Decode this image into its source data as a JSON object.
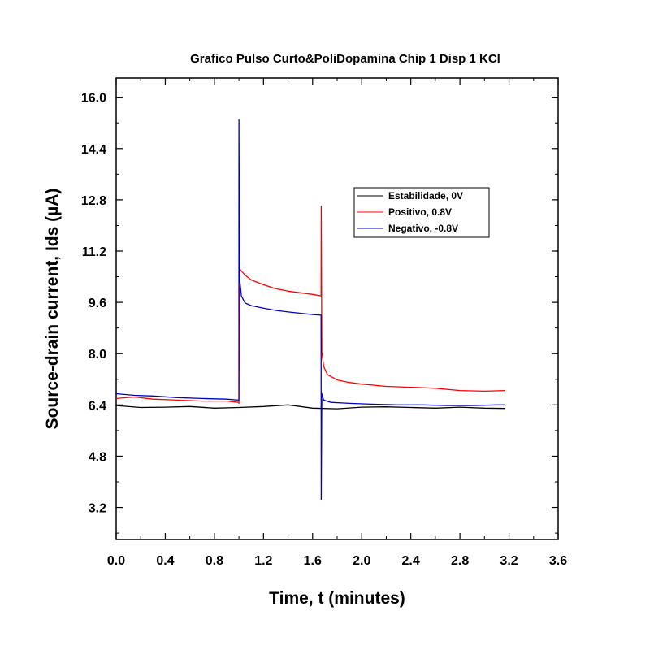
{
  "chart_data": {
    "type": "line",
    "title": "Grafico Pulso Curto&PoliDopamina Chip 1 Disp 1 KCl",
    "xlabel": "Time, t (minutes)",
    "ylabel": "Source-drain current, Ids (µA)",
    "xlim": [
      0.0,
      3.6
    ],
    "ylim": [
      2.2,
      16.6
    ],
    "x_ticks": [
      0.0,
      0.4,
      0.8,
      1.2,
      1.6,
      2.0,
      2.4,
      2.8,
      3.2,
      3.6
    ],
    "x_tick_labels": [
      "0.0",
      "0.4",
      "0.8",
      "1.2",
      "1.6",
      "2.0",
      "2.4",
      "2.8",
      "3.2",
      "3.6"
    ],
    "y_ticks": [
      3.2,
      4.8,
      6.4,
      8.0,
      9.6,
      11.2,
      12.8,
      14.4,
      16.0
    ],
    "y_tick_labels": [
      "3.2",
      "4.8",
      "6.4",
      "8.0",
      "9.6",
      "11.2",
      "12.8",
      "14.4",
      "16.0"
    ],
    "grid": false,
    "legend_position": "top-right",
    "series": [
      {
        "name": "Estabilidade, 0V",
        "color": "#000000",
        "x": [
          0.0,
          0.2,
          0.4,
          0.6,
          0.8,
          1.0,
          1.2,
          1.4,
          1.6,
          1.8,
          2.0,
          2.2,
          2.4,
          2.6,
          2.8,
          3.0,
          3.17
        ],
        "y": [
          6.38,
          6.32,
          6.33,
          6.35,
          6.3,
          6.32,
          6.35,
          6.4,
          6.3,
          6.28,
          6.33,
          6.34,
          6.32,
          6.3,
          6.33,
          6.3,
          6.29
        ]
      },
      {
        "name": "Positivo, 0.8V",
        "color": "#ff0000",
        "x": [
          0.0,
          0.15,
          0.3,
          0.5,
          0.7,
          0.9,
          0.999,
          1.0,
          1.005,
          1.02,
          1.05,
          1.1,
          1.2,
          1.3,
          1.4,
          1.5,
          1.6,
          1.669,
          1.67,
          1.675,
          1.69,
          1.72,
          1.8,
          1.9,
          2.0,
          2.2,
          2.4,
          2.6,
          2.8,
          3.0,
          3.17
        ],
        "y": [
          6.6,
          6.65,
          6.58,
          6.55,
          6.52,
          6.52,
          6.48,
          6.45,
          10.65,
          10.58,
          10.45,
          10.3,
          10.15,
          10.03,
          9.95,
          9.9,
          9.85,
          9.8,
          12.6,
          8.05,
          7.6,
          7.35,
          7.18,
          7.1,
          7.05,
          6.98,
          6.95,
          6.92,
          6.85,
          6.83,
          6.85
        ]
      },
      {
        "name": "Negativo, -0.8V",
        "color": "#0000cc",
        "x": [
          0.0,
          0.15,
          0.3,
          0.5,
          0.7,
          0.9,
          0.999,
          1.0,
          1.005,
          1.02,
          1.05,
          1.1,
          1.2,
          1.3,
          1.4,
          1.5,
          1.6,
          1.669,
          1.67,
          1.675,
          1.69,
          1.75,
          1.9,
          2.1,
          2.3,
          2.5,
          2.7,
          2.9,
          3.1,
          3.17
        ],
        "y": [
          6.75,
          6.7,
          6.68,
          6.63,
          6.6,
          6.58,
          6.55,
          15.3,
          10.35,
          9.8,
          9.58,
          9.5,
          9.42,
          9.35,
          9.3,
          9.26,
          9.22,
          9.2,
          3.45,
          6.75,
          6.55,
          6.48,
          6.45,
          6.42,
          6.4,
          6.4,
          6.38,
          6.38,
          6.4,
          6.4
        ]
      }
    ]
  }
}
